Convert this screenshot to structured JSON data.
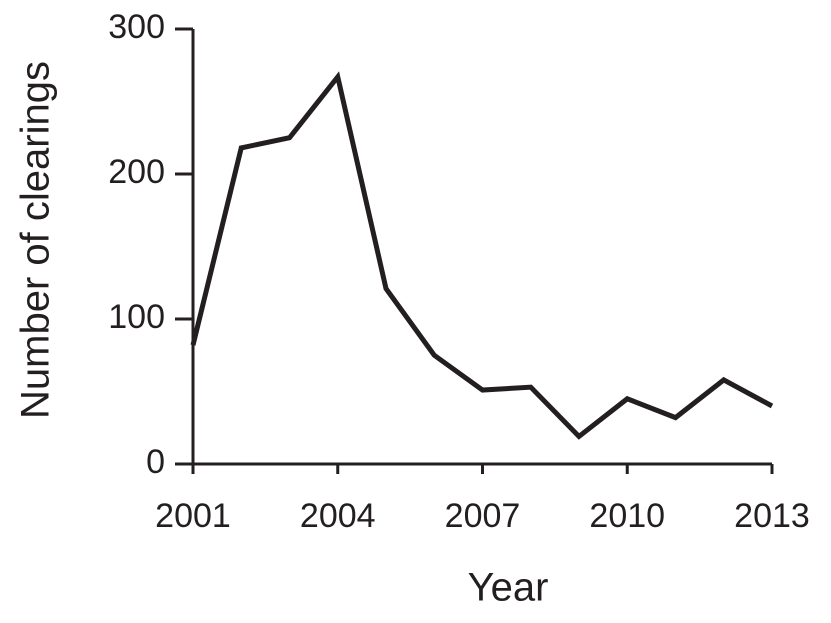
{
  "chart_data": {
    "type": "line",
    "x_label": "Year",
    "y_label": "Number of clearings",
    "x": [
      2001,
      2002,
      2003,
      2004,
      2005,
      2006,
      2007,
      2008,
      2009,
      2010,
      2011,
      2012,
      2013
    ],
    "values": [
      82,
      218,
      225,
      267,
      121,
      75,
      51,
      53,
      19,
      45,
      32,
      58,
      40
    ],
    "color": "#231f20",
    "xlim": [
      2001,
      2013
    ],
    "xticks": [
      2001,
      2004,
      2007,
      2010,
      2013
    ],
    "ylim": [
      0,
      300
    ],
    "yticks": [
      0,
      100,
      200,
      300
    ],
    "grid": false
  }
}
